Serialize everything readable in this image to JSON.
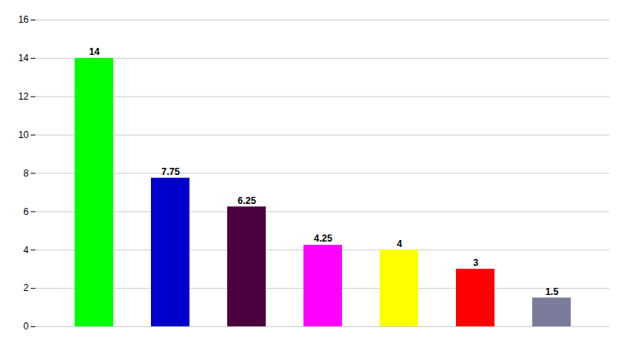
{
  "chart_data": {
    "type": "bar",
    "categories": [
      null,
      null,
      null,
      null,
      null,
      null,
      null
    ],
    "values": [
      14,
      7.75,
      6.25,
      4.25,
      4,
      3,
      1.5
    ],
    "colors": [
      "#00ff00",
      "#0000cd",
      "#4b0040",
      "#ff00ff",
      "#ffff00",
      "#ff0000",
      "#7b7b9b"
    ],
    "ylim": [
      0,
      16
    ],
    "yticks": [
      0,
      2,
      4,
      6,
      8,
      10,
      12,
      14,
      16
    ],
    "grid": true,
    "data_labels": true,
    "tick_labels": "y"
  }
}
